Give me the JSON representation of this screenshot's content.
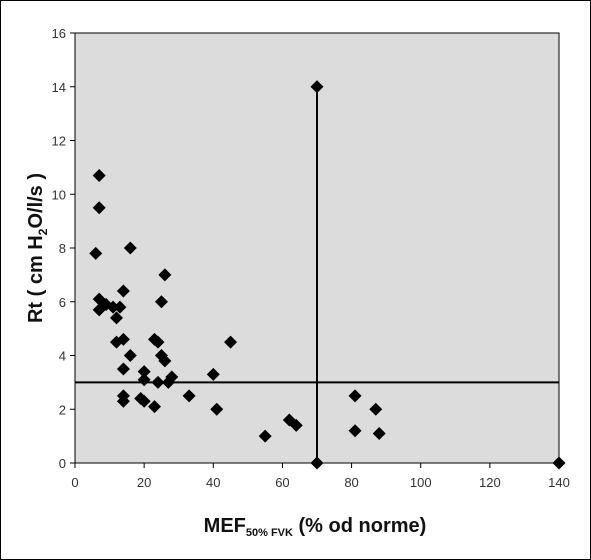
{
  "chart_data": {
    "type": "scatter",
    "xlabel_main": "MEF",
    "xlabel_sub": "50% FVK",
    "xlabel_rest": " (% od norme)",
    "ylabel_prefix": "Rt ( cm H",
    "ylabel_sub": "2",
    "ylabel_suffix": "O/l/s )",
    "xlim": [
      0,
      140
    ],
    "ylim": [
      0,
      16
    ],
    "xticks": [
      0,
      20,
      40,
      60,
      80,
      100,
      120,
      140
    ],
    "yticks": [
      0,
      2,
      4,
      6,
      8,
      10,
      12,
      14,
      16
    ],
    "grid": false,
    "reference_lines": {
      "x": 70,
      "y": 3
    },
    "colors": {
      "plot_bg": "#dcdcdc",
      "marker": "#000000",
      "line": "#000000"
    },
    "points": [
      {
        "x": 6,
        "y": 7.8
      },
      {
        "x": 7,
        "y": 10.7
      },
      {
        "x": 7,
        "y": 9.5
      },
      {
        "x": 7,
        "y": 6.1
      },
      {
        "x": 7,
        "y": 5.7
      },
      {
        "x": 9,
        "y": 5.9
      },
      {
        "x": 11,
        "y": 5.8
      },
      {
        "x": 12,
        "y": 5.4
      },
      {
        "x": 13,
        "y": 5.8
      },
      {
        "x": 12,
        "y": 4.5
      },
      {
        "x": 14,
        "y": 6.4
      },
      {
        "x": 14,
        "y": 4.6
      },
      {
        "x": 16,
        "y": 8.0
      },
      {
        "x": 16,
        "y": 4.0
      },
      {
        "x": 14,
        "y": 3.5
      },
      {
        "x": 14,
        "y": 2.5
      },
      {
        "x": 14,
        "y": 2.3
      },
      {
        "x": 20,
        "y": 3.4
      },
      {
        "x": 20,
        "y": 3.1
      },
      {
        "x": 19,
        "y": 2.4
      },
      {
        "x": 20,
        "y": 2.3
      },
      {
        "x": 23,
        "y": 2.1
      },
      {
        "x": 23,
        "y": 4.6
      },
      {
        "x": 24,
        "y": 4.5
      },
      {
        "x": 25,
        "y": 4.0
      },
      {
        "x": 26,
        "y": 3.8
      },
      {
        "x": 24,
        "y": 3.0
      },
      {
        "x": 25,
        "y": 6.0
      },
      {
        "x": 26,
        "y": 7.0
      },
      {
        "x": 27,
        "y": 3.0
      },
      {
        "x": 28,
        "y": 3.2
      },
      {
        "x": 33,
        "y": 2.5
      },
      {
        "x": 40,
        "y": 3.3
      },
      {
        "x": 41,
        "y": 2.0
      },
      {
        "x": 45,
        "y": 4.5
      },
      {
        "x": 55,
        "y": 1.0
      },
      {
        "x": 62,
        "y": 1.6
      },
      {
        "x": 64,
        "y": 1.4
      },
      {
        "x": 70,
        "y": 14.0
      },
      {
        "x": 70,
        "y": 0.0
      },
      {
        "x": 81,
        "y": 2.5
      },
      {
        "x": 81,
        "y": 1.2
      },
      {
        "x": 87,
        "y": 2.0
      },
      {
        "x": 88,
        "y": 1.1
      },
      {
        "x": 140,
        "y": 0.0
      }
    ]
  }
}
